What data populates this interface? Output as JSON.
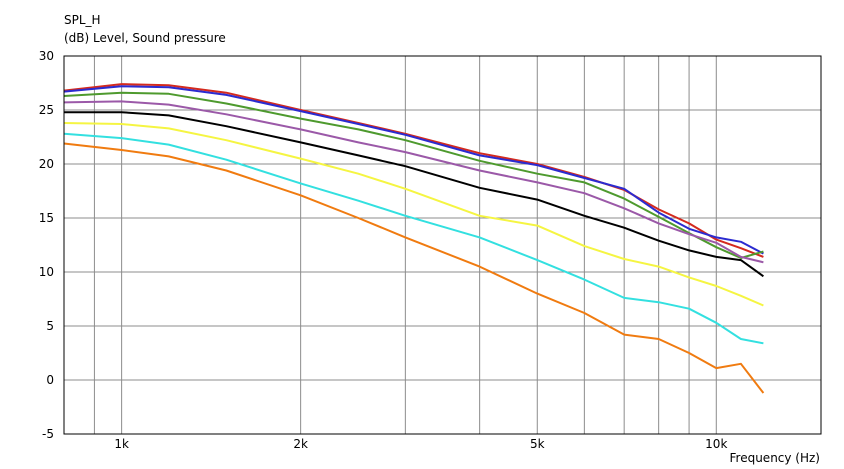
{
  "chart_data": {
    "type": "line",
    "title": "SPL_H",
    "subtitle": "(dB)  Level, Sound pressure",
    "xlabel": "Frequency  (Hz)",
    "ylabel": "",
    "x_scale": "log",
    "xlim": [
      800,
      15000
    ],
    "ylim": [
      -5,
      30
    ],
    "grid": true,
    "legend": "none",
    "y_ticks": [
      30,
      25,
      20,
      15,
      10,
      5,
      0,
      -5
    ],
    "x_tick_labels": [
      {
        "value": 1000,
        "label": "1k"
      },
      {
        "value": 2000,
        "label": "2k"
      },
      {
        "value": 5000,
        "label": "5k"
      },
      {
        "value": 10000,
        "label": "10k"
      }
    ],
    "x_minor_grid": [
      900,
      3000,
      4000,
      6000,
      7000,
      8000,
      9000
    ],
    "x": [
      800,
      1000,
      1200,
      1500,
      2000,
      2500,
      3000,
      4000,
      5000,
      6000,
      7000,
      8000,
      9000,
      10000,
      11000,
      12000
    ],
    "series": [
      {
        "color": "#d42a1e",
        "values": [
          26.8,
          27.4,
          27.3,
          26.6,
          25.0,
          23.8,
          22.8,
          21.0,
          20.0,
          18.8,
          17.6,
          15.8,
          14.5,
          13.0,
          12.2,
          11.4
        ]
      },
      {
        "color": "#2b2bd0",
        "values": [
          26.7,
          27.2,
          27.1,
          26.4,
          24.9,
          23.7,
          22.7,
          20.8,
          19.9,
          18.7,
          17.7,
          15.5,
          14.0,
          13.2,
          12.8,
          11.7
        ]
      },
      {
        "color": "#4e9a2e",
        "values": [
          26.3,
          26.6,
          26.5,
          25.6,
          24.2,
          23.2,
          22.2,
          20.3,
          19.1,
          18.3,
          16.8,
          15.1,
          13.6,
          12.3,
          11.3,
          11.9
        ]
      },
      {
        "color": "#9b59a8",
        "values": [
          25.7,
          25.8,
          25.5,
          24.6,
          23.2,
          22.0,
          21.1,
          19.4,
          18.3,
          17.3,
          15.9,
          14.5,
          13.5,
          12.7,
          11.4,
          10.9
        ]
      },
      {
        "color": "#000000",
        "values": [
          24.8,
          24.8,
          24.5,
          23.5,
          22.0,
          20.8,
          19.8,
          17.8,
          16.7,
          15.2,
          14.1,
          12.9,
          12.0,
          11.4,
          11.1,
          9.6
        ]
      },
      {
        "color": "#f5f542",
        "values": [
          23.8,
          23.7,
          23.3,
          22.2,
          20.5,
          19.1,
          17.7,
          15.2,
          14.3,
          12.4,
          11.2,
          10.5,
          9.5,
          8.7,
          7.8,
          6.9
        ]
      },
      {
        "color": "#33e0e0",
        "values": [
          22.8,
          22.4,
          21.8,
          20.4,
          18.2,
          16.6,
          15.2,
          13.2,
          11.1,
          9.3,
          7.6,
          7.2,
          6.6,
          5.3,
          3.8,
          3.4
        ]
      },
      {
        "color": "#f07b10",
        "values": [
          21.9,
          21.3,
          20.7,
          19.4,
          17.1,
          15.0,
          13.2,
          10.5,
          8.0,
          6.2,
          4.2,
          3.8,
          2.5,
          1.1,
          1.5,
          -1.2
        ]
      }
    ]
  }
}
